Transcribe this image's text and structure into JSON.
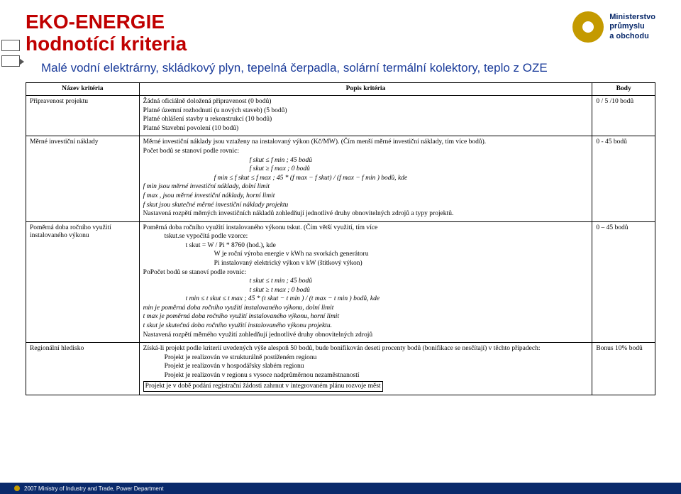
{
  "title_l1": "EKO-ENERGIE",
  "title_l2": "hodnotící kriteria",
  "subtitle": "Malé vodní elektrárny, skládkový plyn, tepelná čerpadla, solární termální kolektory, teplo z OZE",
  "logo_l1": "Ministerstvo",
  "logo_l2": "průmyslu",
  "logo_l3": "a obchodu",
  "th_name": "Název kritéria",
  "th_desc": "Popis kritéria",
  "th_body": "Body",
  "r1_name": "Připravenost projektu",
  "r1_d1": "Žádná oficiálně doložená připravenost (0 bodů)",
  "r1_d2": "Platné územní rozhodnutí (u nových staveb) (5 bodů)",
  "r1_d3": "Platné ohlášení stavby u rekonstrukcí (10 bodů)",
  "r1_d4": "Platné Stavební povolení (10 bodů)",
  "r1_body": "0 / 5 /10 bodů",
  "r2_name": "Měrné investiční náklady",
  "r2_d1": "Měrné investiční náklady jsou vztaženy na instalovaný výkon (Kč/MW). (Čím menší měrné investiční náklady, tím více bodů).",
  "r2_d2": "Počet bodů se stanoví podle rovnic:",
  "r2_eq1": "f skut ≤ f min  ;          45 bodů",
  "r2_eq2": "f skut ≥ f max  ;          0 bodů",
  "r2_eq3": "f min ≤ f skut ≤ f max  ;  45 * (f max − f skut)  /  (f max − f min ) bodů, kde",
  "r2_d3": "f min  jsou měrné investiční náklady, dolní limit",
  "r2_d4": "f max , jsou měrné investiční náklady, horní limit",
  "r2_d5": "f skut  jsou skutečné měrné investiční náklady projektu",
  "r2_d6": "Nastavená rozpětí měrných investičních nákladů zohledňují jednotlivé druhy obnovitelných zdrojů a typy projektů.",
  "r2_body": "0 - 45 bodů",
  "r3_name": "Poměrná doba ročního využití instalovaného výkonu",
  "r3_d1": "Poměrná doba ročního využití instalovaného výkonu tskut. (Čím větší využití, tím více",
  "r3_d2": "tskut.se vypočítá podle vzorce:",
  "r3_d3": "t skut  =  W / Pi  * 8760   (hod.), kde",
  "r3_d4": "W je roční výroba energie v kWh na svorkách generátoru",
  "r3_d5": "Pi instalovaný elektrický výkon v kW (štítkový výkon)",
  "r3_d6": "PoPočet bodů se stanoví podle rovnic:",
  "r3_eq1": "t skut ≤ t min   ;          45 bodů",
  "r3_eq2": "t skut ≥ t max  ;           0 bodů",
  "r3_eq3": "t min ≤ t skut  ≤ t max   ;  45 * (t skut  − t min )   /  (t max  − t min )  bodů, kde",
  "r3_d7": "min  je poměrná doba ročního využití instalovaného výkonu, dolní limit",
  "r3_d8": "t max   je poměrná doba ročního využití instalovaného výkonu, horní limit",
  "r3_d9": "t skut  je skutečná doba ročního využití instalovaného výkonu projektu.",
  "r3_d10": "Nastavená rozpětí měrného využití zohledňují jednotlivé druhy obnovitelných zdrojů",
  "r3_body": "0 – 45 bodů",
  "r4_name": "Regionální hledisko",
  "r4_d1": "Získá-li projekt podle kriterií uvedených výše alespoň 50 bodů, bude bonifikován deseti procenty bodů (bonifikace se nesčítají) v těchto případech:",
  "r4_d2": "Projekt je realizován ve strukturálně postiženém regionu",
  "r4_d3": "Projekt je realizován v hospodářsky slabém regionu",
  "r4_d4": "Projekt je realizován v regionu s vysoce nadprůměrnou nezaměstnaností",
  "r4_d5": "Projekt je v době podání registrační žádosti zahrnut v integrovaném plánu rozvoje měst",
  "r4_body": "Bonus 10% bodů",
  "footer": "2007 Ministry of Industry and Trade, Power Department",
  "colors": {
    "title": "#c00000",
    "subtitle": "#1a3b9a",
    "footer_bg": "#0a2a6b",
    "accent": "#c49a00",
    "border": "#000000",
    "bg": "#ffffff"
  }
}
